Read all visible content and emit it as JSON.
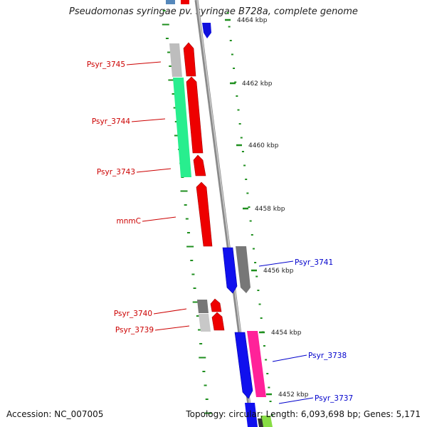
{
  "title": "Pseudomonas syringae pv. syringae B728a, complete genome",
  "accession": "Accession: NC_007005",
  "topology": "Topology: circular; Length: 6,093,698 bp; Genes: 5,171",
  "colors": {
    "backbone": "#8a8a8a",
    "ruler_tick": "#1f8f1f",
    "forward_gene": "#ff0000",
    "reverse_gene": "#0000ff",
    "label_forward": "#cc0000",
    "label_reverse": "#0000cc",
    "grey_block": "#aaaaaa",
    "green_block": "#22ee88",
    "pink_block": "#ff2299"
  },
  "ruler": {
    "marks": [
      {
        "label": "4464 kbp"
      },
      {
        "label": "4462 kbp"
      },
      {
        "label": "4460 kbp"
      },
      {
        "label": "4458 kbp"
      },
      {
        "label": "4456 kbp"
      },
      {
        "label": "4454 kbp"
      },
      {
        "label": "4452 kbp"
      }
    ]
  },
  "genes": [
    {
      "name": "Psyr_3745",
      "strand": "forward"
    },
    {
      "name": "Psyr_3744",
      "strand": "forward"
    },
    {
      "name": "Psyr_3743",
      "strand": "forward"
    },
    {
      "name": "mnmC",
      "strand": "forward"
    },
    {
      "name": "Psyr_3740",
      "strand": "forward"
    },
    {
      "name": "Psyr_3739",
      "strand": "forward"
    },
    {
      "name": "Psyr_3741",
      "strand": "reverse"
    },
    {
      "name": "Psyr_3738",
      "strand": "reverse"
    },
    {
      "name": "Psyr_3737",
      "strand": "reverse"
    }
  ]
}
